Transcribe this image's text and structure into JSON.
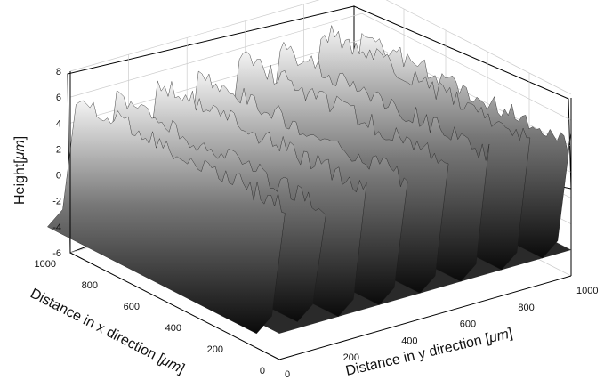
{
  "chart_data": {
    "type": "surface",
    "zlabel_prefix": "Height[",
    "zlabel_unit": "μm",
    "zlabel_suffix": "]",
    "xlabel_prefix": "Distance in x direction [",
    "xlabel_unit": "μm",
    "xlabel_suffix": "]",
    "ylabel_prefix": "Distance in y direction [",
    "ylabel_unit": "μm",
    "ylabel_suffix": "]",
    "z_ticks": [
      "8",
      "6",
      "4",
      "2",
      "0",
      "-2",
      "-4",
      "-6"
    ],
    "x_ticks": [
      "1000",
      "800",
      "600",
      "400",
      "200",
      "0"
    ],
    "y_ticks": [
      "0",
      "200",
      "400",
      "600",
      "800",
      "1000"
    ],
    "xlim": [
      0,
      1000
    ],
    "ylim": [
      0,
      1000
    ],
    "zlim": [
      -6,
      8
    ],
    "grid": true,
    "colormap": "gray",
    "ridges": [
      {
        "y_center": 0,
        "peak_height": 6.5,
        "base_height": -3.5
      },
      {
        "y_center": 140,
        "peak_height": 5.5,
        "base_height": -3.5
      },
      {
        "y_center": 280,
        "peak_height": 6.0,
        "base_height": -4.0
      },
      {
        "y_center": 420,
        "peak_height": 5.8,
        "base_height": -4.0
      },
      {
        "y_center": 560,
        "peak_height": 6.2,
        "base_height": -4.0
      },
      {
        "y_center": 700,
        "peak_height": 6.0,
        "base_height": -4.0
      },
      {
        "y_center": 840,
        "peak_height": 6.4,
        "base_height": -4.0
      },
      {
        "y_center": 980,
        "peak_height": 5.0,
        "base_height": -4.0
      }
    ]
  }
}
